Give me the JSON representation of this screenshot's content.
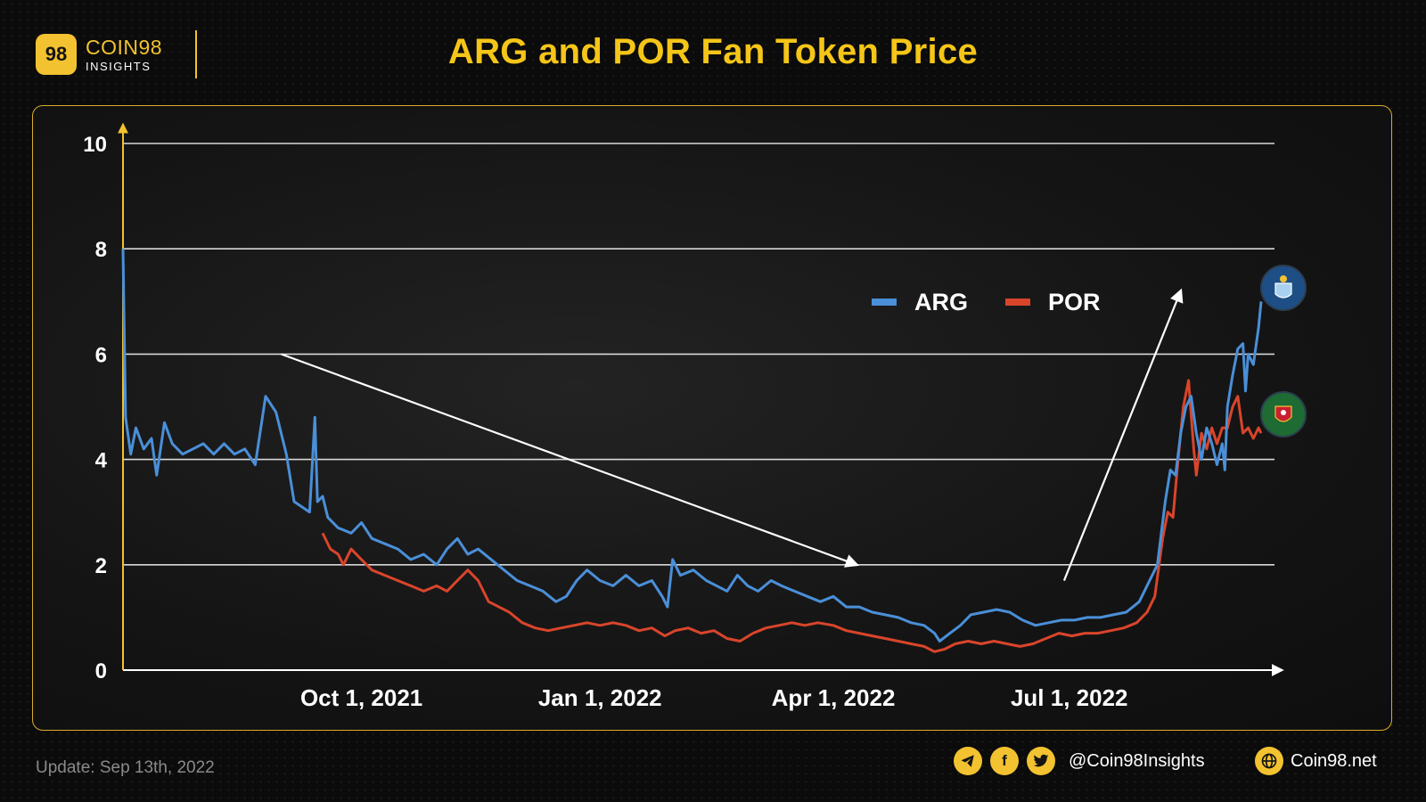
{
  "brand": {
    "name": "COIN98",
    "sub": "INSIGHTS",
    "mark": "98"
  },
  "title": "ARG and POR Fan Token Price",
  "footer": {
    "update": "Update: Sep 13th, 2022",
    "handle": "@Coin98Insights",
    "site": "Coin98.net",
    "icons": [
      "telegram-icon",
      "facebook-icon",
      "twitter-icon",
      "globe-icon"
    ]
  },
  "colors": {
    "accent": "#f5c518",
    "arg": "#4a8fd8",
    "por": "#d9452b",
    "panel_border": "#d8ad2c"
  },
  "chart_data": {
    "type": "line",
    "title": "ARG and POR Fan Token Price",
    "xlabel": "",
    "ylabel": "",
    "x_range": [
      "2021-07-01",
      "2022-09-13"
    ],
    "ylim": [
      0,
      10
    ],
    "yticks": [
      0,
      2,
      4,
      6,
      8,
      10
    ],
    "xticks": [
      {
        "date": "2021-10-01",
        "label": "Oct 1, 2021"
      },
      {
        "date": "2022-01-01",
        "label": "Jan 1, 2022"
      },
      {
        "date": "2022-04-01",
        "label": "Apr 1, 2022"
      },
      {
        "date": "2022-07-01",
        "label": "Jul 1, 2022"
      }
    ],
    "grid": true,
    "legend": "top-right",
    "series": [
      {
        "name": "ARG",
        "color": "#4a8fd8",
        "points": [
          [
            "2021-07-01",
            8.0
          ],
          [
            "2021-07-02",
            4.8
          ],
          [
            "2021-07-04",
            4.1
          ],
          [
            "2021-07-06",
            4.6
          ],
          [
            "2021-07-09",
            4.2
          ],
          [
            "2021-07-12",
            4.4
          ],
          [
            "2021-07-14",
            3.7
          ],
          [
            "2021-07-17",
            4.7
          ],
          [
            "2021-07-20",
            4.3
          ],
          [
            "2021-07-24",
            4.1
          ],
          [
            "2021-07-28",
            4.2
          ],
          [
            "2021-08-01",
            4.3
          ],
          [
            "2021-08-05",
            4.1
          ],
          [
            "2021-08-09",
            4.3
          ],
          [
            "2021-08-13",
            4.1
          ],
          [
            "2021-08-17",
            4.2
          ],
          [
            "2021-08-21",
            3.9
          ],
          [
            "2021-08-25",
            5.2
          ],
          [
            "2021-08-29",
            4.9
          ],
          [
            "2021-09-02",
            4.1
          ],
          [
            "2021-09-05",
            3.2
          ],
          [
            "2021-09-08",
            3.1
          ],
          [
            "2021-09-11",
            3.0
          ],
          [
            "2021-09-13",
            4.8
          ],
          [
            "2021-09-14",
            3.2
          ],
          [
            "2021-09-16",
            3.3
          ],
          [
            "2021-09-18",
            2.9
          ],
          [
            "2021-09-22",
            2.7
          ],
          [
            "2021-09-27",
            2.6
          ],
          [
            "2021-10-01",
            2.8
          ],
          [
            "2021-10-05",
            2.5
          ],
          [
            "2021-10-10",
            2.4
          ],
          [
            "2021-10-15",
            2.3
          ],
          [
            "2021-10-20",
            2.1
          ],
          [
            "2021-10-25",
            2.2
          ],
          [
            "2021-10-30",
            2.0
          ],
          [
            "2021-11-03",
            2.3
          ],
          [
            "2021-11-07",
            2.5
          ],
          [
            "2021-11-11",
            2.2
          ],
          [
            "2021-11-15",
            2.3
          ],
          [
            "2021-11-20",
            2.1
          ],
          [
            "2021-11-25",
            1.9
          ],
          [
            "2021-11-30",
            1.7
          ],
          [
            "2021-12-05",
            1.6
          ],
          [
            "2021-12-10",
            1.5
          ],
          [
            "2021-12-15",
            1.3
          ],
          [
            "2021-12-19",
            1.4
          ],
          [
            "2021-12-23",
            1.7
          ],
          [
            "2021-12-27",
            1.9
          ],
          [
            "2022-01-01",
            1.7
          ],
          [
            "2022-01-06",
            1.6
          ],
          [
            "2022-01-11",
            1.8
          ],
          [
            "2022-01-16",
            1.6
          ],
          [
            "2022-01-21",
            1.7
          ],
          [
            "2022-01-25",
            1.4
          ],
          [
            "2022-01-27",
            1.2
          ],
          [
            "2022-01-29",
            2.1
          ],
          [
            "2022-02-01",
            1.8
          ],
          [
            "2022-02-06",
            1.9
          ],
          [
            "2022-02-11",
            1.7
          ],
          [
            "2022-02-15",
            1.6
          ],
          [
            "2022-02-19",
            1.5
          ],
          [
            "2022-02-23",
            1.8
          ],
          [
            "2022-02-27",
            1.6
          ],
          [
            "2022-03-03",
            1.5
          ],
          [
            "2022-03-08",
            1.7
          ],
          [
            "2022-03-12",
            1.6
          ],
          [
            "2022-03-17",
            1.5
          ],
          [
            "2022-03-22",
            1.4
          ],
          [
            "2022-03-27",
            1.3
          ],
          [
            "2022-04-01",
            1.4
          ],
          [
            "2022-04-06",
            1.2
          ],
          [
            "2022-04-11",
            1.2
          ],
          [
            "2022-04-16",
            1.1
          ],
          [
            "2022-04-21",
            1.05
          ],
          [
            "2022-04-26",
            1.0
          ],
          [
            "2022-05-01",
            0.9
          ],
          [
            "2022-05-06",
            0.85
          ],
          [
            "2022-05-10",
            0.7
          ],
          [
            "2022-05-12",
            0.55
          ],
          [
            "2022-05-16",
            0.7
          ],
          [
            "2022-05-20",
            0.85
          ],
          [
            "2022-05-24",
            1.05
          ],
          [
            "2022-05-29",
            1.1
          ],
          [
            "2022-06-03",
            1.15
          ],
          [
            "2022-06-08",
            1.1
          ],
          [
            "2022-06-13",
            0.95
          ],
          [
            "2022-06-18",
            0.85
          ],
          [
            "2022-06-23",
            0.9
          ],
          [
            "2022-06-28",
            0.95
          ],
          [
            "2022-07-03",
            0.95
          ],
          [
            "2022-07-08",
            1.0
          ],
          [
            "2022-07-13",
            1.0
          ],
          [
            "2022-07-18",
            1.05
          ],
          [
            "2022-07-23",
            1.1
          ],
          [
            "2022-07-28",
            1.3
          ],
          [
            "2022-08-01",
            1.7
          ],
          [
            "2022-08-04",
            2.0
          ],
          [
            "2022-08-07",
            3.2
          ],
          [
            "2022-08-09",
            3.8
          ],
          [
            "2022-08-11",
            3.7
          ],
          [
            "2022-08-13",
            4.5
          ],
          [
            "2022-08-15",
            5.0
          ],
          [
            "2022-08-17",
            5.2
          ],
          [
            "2022-08-19",
            4.5
          ],
          [
            "2022-08-21",
            4.0
          ],
          [
            "2022-08-23",
            4.6
          ],
          [
            "2022-08-25",
            4.3
          ],
          [
            "2022-08-27",
            3.9
          ],
          [
            "2022-08-29",
            4.3
          ],
          [
            "2022-08-30",
            3.8
          ],
          [
            "2022-08-31",
            5.0
          ],
          [
            "2022-09-02",
            5.6
          ],
          [
            "2022-09-04",
            6.1
          ],
          [
            "2022-09-06",
            6.2
          ],
          [
            "2022-09-07",
            5.3
          ],
          [
            "2022-09-08",
            6.0
          ],
          [
            "2022-09-10",
            5.8
          ],
          [
            "2022-09-12",
            6.5
          ],
          [
            "2022-09-13",
            7.0
          ]
        ]
      },
      {
        "name": "POR",
        "color": "#d9452b",
        "points": [
          [
            "2021-09-16",
            2.6
          ],
          [
            "2021-09-19",
            2.3
          ],
          [
            "2021-09-22",
            2.2
          ],
          [
            "2021-09-24",
            2.0
          ],
          [
            "2021-09-27",
            2.3
          ],
          [
            "2021-10-01",
            2.1
          ],
          [
            "2021-10-05",
            1.9
          ],
          [
            "2021-10-10",
            1.8
          ],
          [
            "2021-10-15",
            1.7
          ],
          [
            "2021-10-20",
            1.6
          ],
          [
            "2021-10-25",
            1.5
          ],
          [
            "2021-10-30",
            1.6
          ],
          [
            "2021-11-03",
            1.5
          ],
          [
            "2021-11-07",
            1.7
          ],
          [
            "2021-11-11",
            1.9
          ],
          [
            "2021-11-15",
            1.7
          ],
          [
            "2021-11-19",
            1.3
          ],
          [
            "2021-11-23",
            1.2
          ],
          [
            "2021-11-27",
            1.1
          ],
          [
            "2021-12-02",
            0.9
          ],
          [
            "2021-12-07",
            0.8
          ],
          [
            "2021-12-12",
            0.75
          ],
          [
            "2021-12-17",
            0.8
          ],
          [
            "2021-12-22",
            0.85
          ],
          [
            "2021-12-27",
            0.9
          ],
          [
            "2022-01-01",
            0.85
          ],
          [
            "2022-01-06",
            0.9
          ],
          [
            "2022-01-11",
            0.85
          ],
          [
            "2022-01-16",
            0.75
          ],
          [
            "2022-01-21",
            0.8
          ],
          [
            "2022-01-26",
            0.65
          ],
          [
            "2022-01-30",
            0.75
          ],
          [
            "2022-02-04",
            0.8
          ],
          [
            "2022-02-09",
            0.7
          ],
          [
            "2022-02-14",
            0.75
          ],
          [
            "2022-02-19",
            0.6
          ],
          [
            "2022-02-24",
            0.55
          ],
          [
            "2022-03-01",
            0.7
          ],
          [
            "2022-03-06",
            0.8
          ],
          [
            "2022-03-11",
            0.85
          ],
          [
            "2022-03-16",
            0.9
          ],
          [
            "2022-03-21",
            0.85
          ],
          [
            "2022-03-26",
            0.9
          ],
          [
            "2022-04-01",
            0.85
          ],
          [
            "2022-04-06",
            0.75
          ],
          [
            "2022-04-11",
            0.7
          ],
          [
            "2022-04-16",
            0.65
          ],
          [
            "2022-04-21",
            0.6
          ],
          [
            "2022-04-26",
            0.55
          ],
          [
            "2022-05-01",
            0.5
          ],
          [
            "2022-05-06",
            0.45
          ],
          [
            "2022-05-10",
            0.35
          ],
          [
            "2022-05-14",
            0.4
          ],
          [
            "2022-05-18",
            0.5
          ],
          [
            "2022-05-23",
            0.55
          ],
          [
            "2022-05-28",
            0.5
          ],
          [
            "2022-06-02",
            0.55
          ],
          [
            "2022-06-07",
            0.5
          ],
          [
            "2022-06-12",
            0.45
          ],
          [
            "2022-06-17",
            0.5
          ],
          [
            "2022-06-22",
            0.6
          ],
          [
            "2022-06-27",
            0.7
          ],
          [
            "2022-07-02",
            0.65
          ],
          [
            "2022-07-07",
            0.7
          ],
          [
            "2022-07-12",
            0.7
          ],
          [
            "2022-07-17",
            0.75
          ],
          [
            "2022-07-22",
            0.8
          ],
          [
            "2022-07-27",
            0.9
          ],
          [
            "2022-07-31",
            1.1
          ],
          [
            "2022-08-03",
            1.4
          ],
          [
            "2022-08-06",
            2.5
          ],
          [
            "2022-08-08",
            3.0
          ],
          [
            "2022-08-10",
            2.9
          ],
          [
            "2022-08-12",
            4.0
          ],
          [
            "2022-08-14",
            5.0
          ],
          [
            "2022-08-16",
            5.5
          ],
          [
            "2022-08-18",
            4.2
          ],
          [
            "2022-08-19",
            3.7
          ],
          [
            "2022-08-21",
            4.5
          ],
          [
            "2022-08-23",
            4.2
          ],
          [
            "2022-08-25",
            4.6
          ],
          [
            "2022-08-27",
            4.3
          ],
          [
            "2022-08-29",
            4.6
          ],
          [
            "2022-08-31",
            4.6
          ],
          [
            "2022-09-02",
            5.0
          ],
          [
            "2022-09-04",
            5.2
          ],
          [
            "2022-09-06",
            4.5
          ],
          [
            "2022-09-08",
            4.6
          ],
          [
            "2022-09-10",
            4.4
          ],
          [
            "2022-09-12",
            4.6
          ],
          [
            "2022-09-13",
            4.5
          ]
        ]
      }
    ],
    "annotations": [
      {
        "type": "arrow",
        "from": [
          "2021-08-31",
          6.0
        ],
        "to": [
          "2022-04-10",
          2.0
        ]
      },
      {
        "type": "arrow",
        "from": [
          "2022-06-29",
          1.7
        ],
        "to": [
          "2022-08-13",
          7.2
        ]
      }
    ]
  }
}
